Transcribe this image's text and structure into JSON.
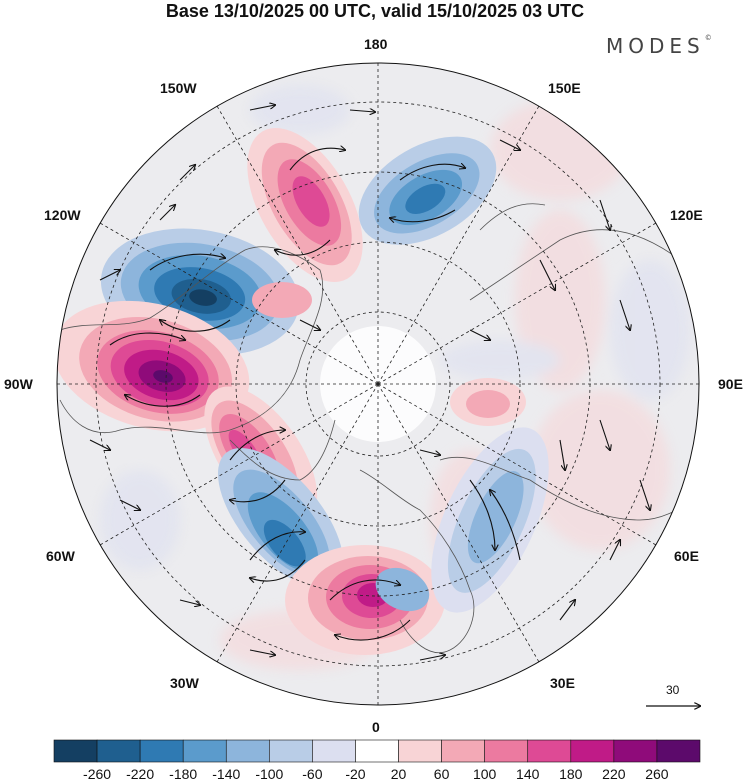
{
  "title": "Base 13/10/2025 00 UTC, valid 15/10/2025 03 UTC",
  "brand": "MODES",
  "brand_mark": "©",
  "longitude_labels": {
    "lon_180": "180",
    "lon_150W": "150W",
    "lon_150E": "150E",
    "lon_120W": "120W",
    "lon_120E": "120E",
    "lon_90W": "90W",
    "lon_90E": "90E",
    "lon_60W": "60W",
    "lon_60E": "60E",
    "lon_30W": "30W",
    "lon_30E": "30E",
    "lon_0": "0"
  },
  "vector_reference": "30",
  "colorbar": {
    "labels": [
      "-260",
      "-220",
      "-180",
      "-140",
      "-100",
      "-60",
      "-20",
      "20",
      "60",
      "100",
      "140",
      "180",
      "220",
      "260"
    ],
    "colors": [
      "#143f62",
      "#1f5f8f",
      "#2f7ab3",
      "#5b9bcc",
      "#8db5dc",
      "#b9cde7",
      "#dcdff0",
      "#ffffff",
      "#f8d4d6",
      "#f3a9b6",
      "#ec7aa0",
      "#de4a95",
      "#c01b87",
      "#8f0b7a",
      "#5c0a6b"
    ]
  },
  "anomalies": [
    {
      "name": "anomaly-neg-120w",
      "color": "#1f5f8f"
    },
    {
      "name": "anomaly-pos-90w",
      "color": "#8f0b7a"
    },
    {
      "name": "anomaly-pos-160w",
      "color": "#de4a95"
    },
    {
      "name": "anomaly-neg-160e",
      "color": "#2f7ab3"
    },
    {
      "name": "anomaly-pos-75w",
      "color": "#de4a95"
    },
    {
      "name": "anomaly-neg-45w",
      "color": "#2f7ab3"
    },
    {
      "name": "anomaly-pos-10w",
      "color": "#c01b87"
    },
    {
      "name": "anomaly-neg-30e",
      "color": "#8db5dc"
    },
    {
      "name": "anomaly-pos-90e",
      "color": "#f3a9b6"
    }
  ]
}
